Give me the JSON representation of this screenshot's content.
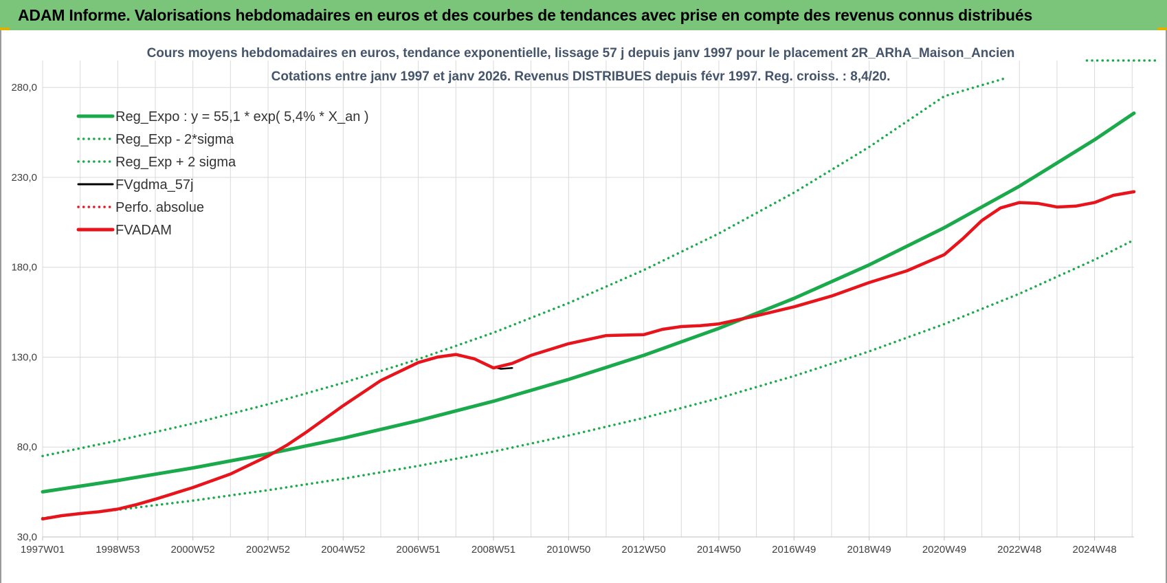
{
  "banner": {
    "title": "ADAM Informe. Valorisations hebdomadaires en euros et des courbes de tendances avec prise en compte des revenus connus distribués"
  },
  "colors": {
    "banner_bg": "#7bc57b",
    "trend": "#1aaa4b",
    "perf": "#e8141c",
    "fvgdma": "#000000",
    "grid": "#d9d9d9"
  },
  "chart_data": {
    "type": "line",
    "title": "Cours moyens  hebdomadaires en euros, tendance exponentielle, lissage 57 j depuis janv 1997 pour le placement 2R_ARhA_Maison_Ancien",
    "subtitle": "Cotations entre janv 1997 et janv 2026. Revenus DISTRIBUES depuis févr 1997. Reg. croiss. : 8,4/20.",
    "xlabel": "",
    "ylabel": "",
    "x_range": [
      1997.0,
      2026.05
    ],
    "ylim": [
      30,
      295
    ],
    "y_ticks": [
      30,
      80,
      130,
      180,
      230,
      280
    ],
    "y_tick_labels": [
      "30,0",
      "80,0",
      "130,0",
      "180,0",
      "230,0",
      "280,0"
    ],
    "x_ticks": [
      {
        "label": "1997W01",
        "x": 1997.0
      },
      {
        "label": "1998W53",
        "x": 1999.0
      },
      {
        "label": "2000W52",
        "x": 2001.0
      },
      {
        "label": "2002W52",
        "x": 2003.0
      },
      {
        "label": "2004W52",
        "x": 2005.0
      },
      {
        "label": "2006W51",
        "x": 2007.0
      },
      {
        "label": "2008W51",
        "x": 2009.0
      },
      {
        "label": "2010W50",
        "x": 2011.0
      },
      {
        "label": "2012W50",
        "x": 2013.0
      },
      {
        "label": "2014W50",
        "x": 2015.0
      },
      {
        "label": "2016W49",
        "x": 2017.0
      },
      {
        "label": "2018W49",
        "x": 2019.0
      },
      {
        "label": "2020W49",
        "x": 2021.0
      },
      {
        "label": "2022W48",
        "x": 2023.0
      },
      {
        "label": "2024W48",
        "x": 2025.0
      }
    ],
    "grid": true,
    "legend_position": "top-left",
    "series": [
      {
        "name": "Reg_Expo : y = 55,1 * exp( 5,4% *  X_an )",
        "style": "solid",
        "color": "#1aaa4b",
        "x": [
          1997.0,
          1999.0,
          2001.0,
          2003.0,
          2005.0,
          2007.0,
          2009.0,
          2011.0,
          2013.0,
          2015.0,
          2017.0,
          2019.0,
          2021.0,
          2023.0,
          2025.0,
          2026.05
        ],
        "y": [
          55.1,
          61.4,
          68.4,
          76.2,
          84.9,
          94.7,
          105.5,
          117.6,
          131.0,
          146.0,
          162.7,
          181.3,
          202.0,
          225.1,
          250.9,
          265.7
        ]
      },
      {
        "name": "Reg_Exp - 2*sigma",
        "style": "dotted",
        "color": "#1aaa4b",
        "x": [
          1997.0,
          1999.0,
          2001.0,
          2003.0,
          2005.0,
          2007.0,
          2009.0,
          2011.0,
          2013.0,
          2015.0,
          2017.0,
          2019.0,
          2021.0,
          2023.0,
          2025.0,
          2026.05
        ],
        "y": [
          40.5,
          45.1,
          50.2,
          56.0,
          62.4,
          69.5,
          77.5,
          86.4,
          96.2,
          107.2,
          119.5,
          133.2,
          148.4,
          165.3,
          184.2,
          195.2
        ]
      },
      {
        "name": "Reg_Exp + 2 sigma",
        "style": "dotted",
        "color": "#1aaa4b",
        "x": [
          1997.0,
          1999.0,
          2001.0,
          2003.0,
          2005.0,
          2007.0,
          2009.0,
          2011.0,
          2013.0,
          2015.0,
          2017.0,
          2019.0,
          2021.0,
          2022.6
        ],
        "y": [
          75.0,
          83.6,
          93.1,
          103.8,
          115.7,
          128.9,
          143.6,
          160.1,
          178.4,
          198.8,
          221.5,
          246.9,
          275.1,
          285.0
        ]
      },
      {
        "name": "FVgdma_57j",
        "style": "solid",
        "color": "#000000",
        "x": [
          2009.0,
          2009.2,
          2009.5
        ],
        "y": [
          124.5,
          123.5,
          124.0
        ]
      },
      {
        "name": "Perfo. absolue",
        "style": "dotted",
        "color": "#e8141c",
        "x": [],
        "y": []
      },
      {
        "name": "FVADAM",
        "style": "solid",
        "color": "#e8141c",
        "x": [
          1997.0,
          1997.5,
          1998.0,
          1998.5,
          1999.0,
          1999.5,
          2000.0,
          2001.0,
          2002.0,
          2003.0,
          2003.5,
          2004.0,
          2005.0,
          2006.0,
          2007.0,
          2007.5,
          2008.0,
          2008.5,
          2009.0,
          2009.5,
          2010.0,
          2011.0,
          2012.0,
          2013.0,
          2013.5,
          2014.0,
          2014.5,
          2015.0,
          2016.0,
          2017.0,
          2018.0,
          2019.0,
          2020.0,
          2021.0,
          2021.5,
          2022.0,
          2022.5,
          2023.0,
          2023.5,
          2024.0,
          2024.5,
          2025.0,
          2025.5,
          2026.05
        ],
        "y": [
          40.0,
          41.8,
          43.0,
          44.0,
          45.5,
          48.0,
          51.0,
          57.5,
          65.0,
          75.0,
          81.0,
          88.0,
          103.0,
          117.0,
          127.0,
          130.0,
          131.5,
          129.0,
          124.0,
          126.5,
          131.0,
          137.5,
          142.0,
          142.5,
          145.5,
          147.0,
          147.5,
          148.5,
          153.0,
          158.0,
          164.0,
          171.5,
          178.0,
          187.0,
          196.0,
          206.0,
          213.0,
          216.0,
          215.5,
          213.5,
          214.0,
          216.0,
          220.0,
          222.0
        ]
      }
    ]
  }
}
